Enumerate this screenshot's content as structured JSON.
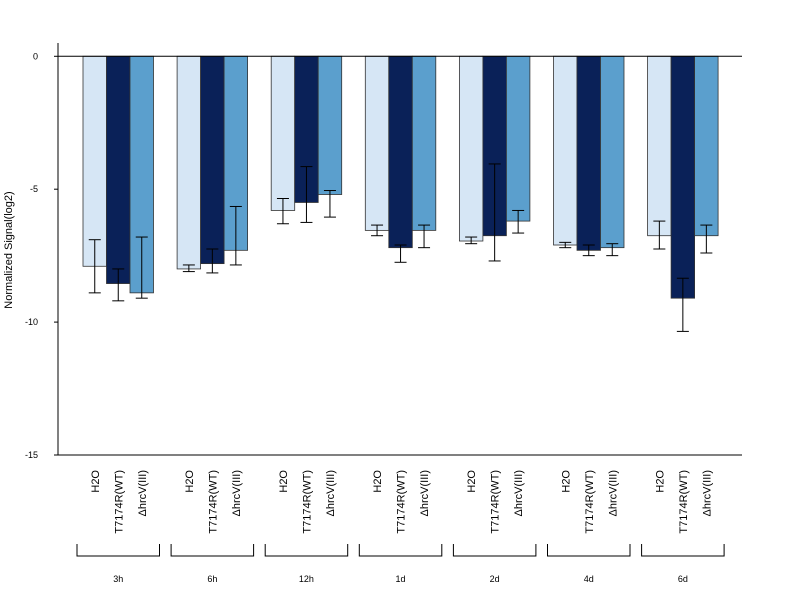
{
  "chart_data": {
    "type": "bar",
    "title": "",
    "xlabel": "",
    "ylabel": "Normalized Signal(log2)",
    "ylim": [
      -15,
      0.5
    ],
    "yticks": [
      0,
      -5,
      -10,
      -15
    ],
    "grid": false,
    "legend": "none",
    "series_names": [
      "H2O",
      "T7174R(WT)",
      "ΔhrcV(III)"
    ],
    "colors": [
      "#d6e6f5",
      "#0a2158",
      "#5b9fcd"
    ],
    "groups": [
      {
        "label": "3h",
        "values": [
          -7.9,
          -8.55,
          -8.9
        ],
        "errors": [
          [
            -8.9,
            -6.9
          ],
          [
            -9.2,
            -8.0
          ],
          [
            -9.1,
            -6.8
          ]
        ]
      },
      {
        "label": "6h",
        "values": [
          -8.0,
          -7.8,
          -7.3
        ],
        "errors": [
          [
            -8.1,
            -7.85
          ],
          [
            -8.15,
            -7.25
          ],
          [
            -7.85,
            -5.65
          ]
        ]
      },
      {
        "label": "12h",
        "values": [
          -5.8,
          -5.5,
          -5.2
        ],
        "errors": [
          [
            -6.3,
            -5.35
          ],
          [
            -6.25,
            -4.15
          ],
          [
            -6.05,
            -5.05
          ]
        ]
      },
      {
        "label": "1d",
        "values": [
          -6.55,
          -7.2,
          -6.55
        ],
        "errors": [
          [
            -6.75,
            -6.35
          ],
          [
            -7.75,
            -7.1
          ],
          [
            -7.2,
            -6.35
          ]
        ]
      },
      {
        "label": "2d",
        "values": [
          -6.95,
          -6.75,
          -6.2
        ],
        "errors": [
          [
            -7.05,
            -6.8
          ],
          [
            -7.7,
            -4.05
          ],
          [
            -6.65,
            -5.8
          ]
        ]
      },
      {
        "label": "4d",
        "values": [
          -7.1,
          -7.3,
          -7.2
        ],
        "errors": [
          [
            -7.2,
            -7.0
          ],
          [
            -7.5,
            -7.1
          ],
          [
            -7.5,
            -7.05
          ]
        ]
      },
      {
        "label": "6d",
        "values": [
          -6.75,
          -9.1,
          -6.75
        ],
        "errors": [
          [
            -7.25,
            -6.2
          ],
          [
            -10.35,
            -8.35
          ],
          [
            -7.4,
            -6.35
          ]
        ]
      }
    ]
  }
}
